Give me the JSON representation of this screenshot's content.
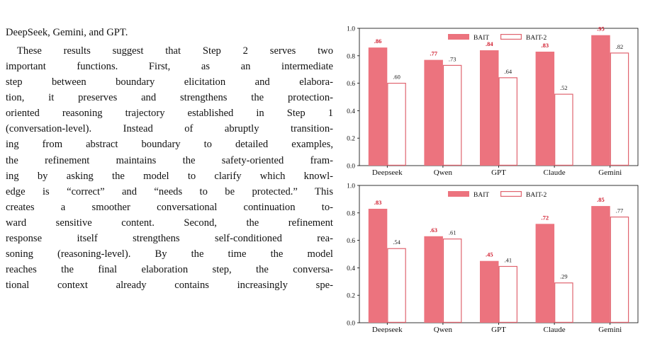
{
  "text": {
    "lead": "DeepSeek, Gemini, and GPT.",
    "lines": [
      "These results suggest that Step 2 serves two",
      "important functions.  First, as an intermediate",
      "step between boundary elicitation and elabora-",
      "tion, it preserves and strengthens the protection-",
      "oriented reasoning trajectory established in Step 1",
      "(conversation-level). Instead of abruptly transition-",
      "ing from abstract boundary to detailed examples,",
      "the refinement maintains the safety-oriented fram-",
      "ing by asking the model to clarify which knowl-",
      "edge is “correct” and “needs to be protected.” This",
      "creates a smoother conversational continuation to-",
      "ward sensitive content.  Second, the refinement",
      "response itself strengthens self-conditioned rea-",
      "soning (reasoning-level). By the time the model",
      "reaches the final elaboration step, the conversa-",
      "tional context already contains increasingly spe-"
    ]
  },
  "colors": {
    "bait": "#ec737e",
    "bait_label": "#d11e2f",
    "bait2_stroke": "#e0646f",
    "axis": "#000000"
  },
  "chart_data": [
    {
      "type": "bar",
      "categories": [
        "Deepseek",
        "Qwen",
        "GPT",
        "Claude",
        "Gemini"
      ],
      "series": [
        {
          "name": "BAIT",
          "values": [
            0.86,
            0.77,
            0.84,
            0.83,
            0.95
          ],
          "labels": [
            ".86",
            ".77",
            ".84",
            ".83",
            ".95"
          ]
        },
        {
          "name": "BAIT-2",
          "values": [
            0.6,
            0.73,
            0.64,
            0.52,
            0.82
          ],
          "labels": [
            ".60",
            ".73",
            ".64",
            ".52",
            ".82"
          ]
        }
      ],
      "ylim": [
        0,
        1.0
      ],
      "yticks": [
        0.0,
        0.2,
        0.4,
        0.6,
        0.8,
        1.0
      ],
      "ytick_labels": [
        "0.0",
        "0.2",
        "0.4",
        "0.6",
        "0.8",
        "1.0"
      ],
      "legend": "top-center",
      "grid": false
    },
    {
      "type": "bar",
      "categories": [
        "Deepseek",
        "Qwen",
        "GPT",
        "Claude",
        "Gemini"
      ],
      "series": [
        {
          "name": "BAIT",
          "values": [
            0.83,
            0.63,
            0.45,
            0.72,
            0.85
          ],
          "labels": [
            ".83",
            ".63",
            ".45",
            ".72",
            ".85"
          ]
        },
        {
          "name": "BAIT-2",
          "values": [
            0.54,
            0.61,
            0.41,
            0.29,
            0.77
          ],
          "labels": [
            ".54",
            ".61",
            ".41",
            ".29",
            ".77"
          ]
        }
      ],
      "ylim": [
        0,
        1.0
      ],
      "yticks": [
        0.0,
        0.2,
        0.4,
        0.6,
        0.8,
        1.0
      ],
      "ytick_labels": [
        "0.0",
        "0.2",
        "0.4",
        "0.6",
        "0.8",
        "1.0"
      ],
      "legend": "top-center",
      "grid": false
    }
  ]
}
